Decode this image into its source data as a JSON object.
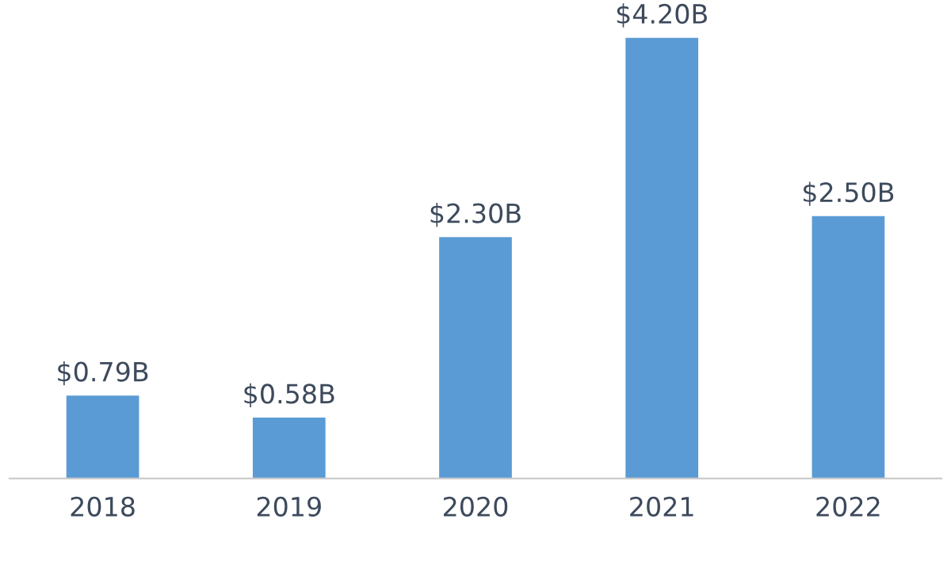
{
  "chart_data": {
    "type": "bar",
    "categories": [
      "2018",
      "2019",
      "2020",
      "2021",
      "2022"
    ],
    "values": [
      0.79,
      0.58,
      2.3,
      4.2,
      2.5
    ],
    "value_labels": [
      "$0.79B",
      "$0.58B",
      "$2.30B",
      "$4.20B",
      "$2.50B"
    ],
    "color": "#5b9bd5",
    "tick_labels": "x",
    "grid": false,
    "legend": false
  }
}
